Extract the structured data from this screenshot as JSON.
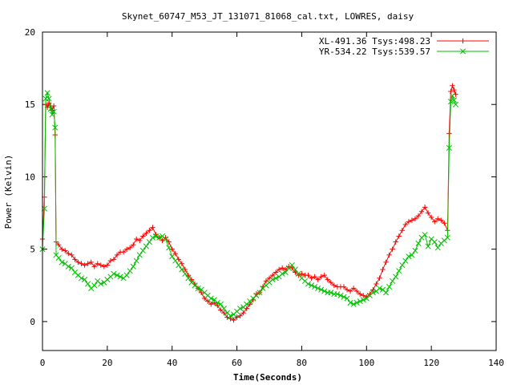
{
  "chart_data": {
    "type": "line",
    "title": "Skynet_60747_M53_JT_131071_81068_cal.txt, LOWRES, daisy",
    "xlabel": "Time(Seconds)",
    "ylabel": "Power (Kelvin)",
    "xlim": [
      0,
      140
    ],
    "ylim": [
      -2,
      20
    ],
    "xticks": [
      "0",
      "20",
      "40",
      "60",
      "80",
      "100",
      "120",
      "140"
    ],
    "yticks": [
      "0",
      "5",
      "10",
      "15",
      "20"
    ],
    "grid": false,
    "legend_position": "top-right",
    "series": [
      {
        "name": "XL-491.36 Tsys:498.23",
        "color": "#ff0000",
        "marker": "plus",
        "points": [
          [
            0.0,
            5.7
          ],
          [
            0.6,
            8.6
          ],
          [
            1.0,
            15.0
          ],
          [
            1.5,
            14.8
          ],
          [
            2.0,
            15.1
          ],
          [
            2.5,
            14.9
          ],
          [
            3.0,
            14.6
          ],
          [
            3.5,
            14.9
          ],
          [
            3.9,
            12.9
          ],
          [
            4.2,
            5.5
          ],
          [
            5,
            5.3
          ],
          [
            6,
            5.0
          ],
          [
            7,
            4.9
          ],
          [
            8,
            4.7
          ],
          [
            9,
            4.6
          ],
          [
            10,
            4.3
          ],
          [
            11,
            4.1
          ],
          [
            12,
            4.0
          ],
          [
            13,
            3.9
          ],
          [
            14,
            4.0
          ],
          [
            15,
            4.1
          ],
          [
            16,
            3.8
          ],
          [
            17,
            4.0
          ],
          [
            18,
            3.9
          ],
          [
            19,
            3.8
          ],
          [
            20,
            3.9
          ],
          [
            21,
            4.2
          ],
          [
            22,
            4.3
          ],
          [
            23,
            4.6
          ],
          [
            24,
            4.8
          ],
          [
            25,
            4.8
          ],
          [
            26,
            5.0
          ],
          [
            27,
            5.1
          ],
          [
            28,
            5.3
          ],
          [
            29,
            5.7
          ],
          [
            30,
            5.6
          ],
          [
            31,
            5.9
          ],
          [
            32,
            6.1
          ],
          [
            33,
            6.3
          ],
          [
            34,
            6.5
          ],
          [
            35,
            6.0
          ],
          [
            36,
            5.8
          ],
          [
            37,
            5.6
          ],
          [
            38,
            5.8
          ],
          [
            39,
            5.5
          ],
          [
            40,
            5.0
          ],
          [
            41,
            4.7
          ],
          [
            42,
            4.3
          ],
          [
            43,
            4.0
          ],
          [
            44,
            3.6
          ],
          [
            45,
            3.2
          ],
          [
            46,
            2.9
          ],
          [
            47,
            2.6
          ],
          [
            48,
            2.3
          ],
          [
            49,
            2.0
          ],
          [
            50,
            1.6
          ],
          [
            51,
            1.4
          ],
          [
            52,
            1.2
          ],
          [
            53,
            1.3
          ],
          [
            54,
            1.1
          ],
          [
            55,
            0.8
          ],
          [
            56,
            0.6
          ],
          [
            57,
            0.3
          ],
          [
            58,
            0.2
          ],
          [
            59,
            0.1
          ],
          [
            60,
            0.3
          ],
          [
            61,
            0.4
          ],
          [
            62,
            0.6
          ],
          [
            63,
            0.9
          ],
          [
            64,
            1.2
          ],
          [
            65,
            1.5
          ],
          [
            66,
            1.9
          ],
          [
            67,
            2.0
          ],
          [
            68,
            2.4
          ],
          [
            69,
            2.8
          ],
          [
            70,
            3.0
          ],
          [
            71,
            3.2
          ],
          [
            72,
            3.4
          ],
          [
            73,
            3.6
          ],
          [
            74,
            3.7
          ],
          [
            75,
            3.6
          ],
          [
            76,
            3.8
          ],
          [
            77,
            3.7
          ],
          [
            78,
            3.4
          ],
          [
            79,
            3.2
          ],
          [
            80,
            3.3
          ],
          [
            81,
            3.2
          ],
          [
            82,
            3.2
          ],
          [
            83,
            3.0
          ],
          [
            84,
            3.1
          ],
          [
            85,
            2.9
          ],
          [
            86,
            3.1
          ],
          [
            87,
            3.2
          ],
          [
            88,
            2.9
          ],
          [
            89,
            2.7
          ],
          [
            90,
            2.5
          ],
          [
            91,
            2.4
          ],
          [
            92,
            2.4
          ],
          [
            93,
            2.4
          ],
          [
            94,
            2.2
          ],
          [
            95,
            2.1
          ],
          [
            96,
            2.3
          ],
          [
            97,
            2.1
          ],
          [
            98,
            1.9
          ],
          [
            99,
            1.8
          ],
          [
            100,
            1.7
          ],
          [
            101,
            1.9
          ],
          [
            102,
            2.2
          ],
          [
            103,
            2.6
          ],
          [
            104,
            3.0
          ],
          [
            105,
            3.6
          ],
          [
            106,
            4.1
          ],
          [
            107,
            4.6
          ],
          [
            108,
            5.0
          ],
          [
            109,
            5.5
          ],
          [
            110,
            5.9
          ],
          [
            111,
            6.3
          ],
          [
            112,
            6.7
          ],
          [
            113,
            6.9
          ],
          [
            114,
            7.0
          ],
          [
            115,
            7.1
          ],
          [
            116,
            7.3
          ],
          [
            117,
            7.6
          ],
          [
            118,
            7.9
          ],
          [
            119,
            7.5
          ],
          [
            120,
            7.2
          ],
          [
            121,
            6.9
          ],
          [
            122,
            7.1
          ],
          [
            123,
            7.0
          ],
          [
            124,
            6.8
          ],
          [
            125,
            6.3
          ],
          [
            125.5,
            13.0
          ],
          [
            126,
            15.9
          ],
          [
            126.5,
            16.3
          ],
          [
            127,
            16.0
          ],
          [
            127.5,
            15.7
          ]
        ]
      },
      {
        "name": "YR-534.22 Tsys:539.57",
        "color": "#00c000",
        "marker": "cross",
        "points": [
          [
            0.0,
            5.0
          ],
          [
            0.6,
            7.8
          ],
          [
            1.0,
            15.4
          ],
          [
            1.5,
            15.8
          ],
          [
            2.0,
            15.4
          ],
          [
            2.5,
            14.7
          ],
          [
            3.0,
            14.3
          ],
          [
            3.5,
            14.5
          ],
          [
            3.9,
            13.4
          ],
          [
            4.2,
            4.6
          ],
          [
            5,
            4.4
          ],
          [
            6,
            4.1
          ],
          [
            7,
            4.0
          ],
          [
            8,
            3.8
          ],
          [
            9,
            3.7
          ],
          [
            10,
            3.4
          ],
          [
            11,
            3.2
          ],
          [
            12,
            3.0
          ],
          [
            13,
            2.9
          ],
          [
            14,
            2.6
          ],
          [
            15,
            2.3
          ],
          [
            16,
            2.5
          ],
          [
            17,
            2.8
          ],
          [
            18,
            2.6
          ],
          [
            19,
            2.7
          ],
          [
            20,
            2.9
          ],
          [
            21,
            3.1
          ],
          [
            22,
            3.3
          ],
          [
            23,
            3.2
          ],
          [
            24,
            3.1
          ],
          [
            25,
            3.0
          ],
          [
            26,
            3.2
          ],
          [
            27,
            3.5
          ],
          [
            28,
            3.8
          ],
          [
            29,
            4.2
          ],
          [
            30,
            4.6
          ],
          [
            31,
            4.9
          ],
          [
            32,
            5.2
          ],
          [
            33,
            5.5
          ],
          [
            34,
            5.8
          ],
          [
            35,
            5.9
          ],
          [
            36,
            5.8
          ],
          [
            37,
            5.9
          ],
          [
            38,
            5.7
          ],
          [
            39,
            5.1
          ],
          [
            40,
            4.5
          ],
          [
            41,
            4.2
          ],
          [
            42,
            3.9
          ],
          [
            43,
            3.6
          ],
          [
            44,
            3.3
          ],
          [
            45,
            3.0
          ],
          [
            46,
            2.7
          ],
          [
            47,
            2.5
          ],
          [
            48,
            2.3
          ],
          [
            49,
            2.2
          ],
          [
            50,
            2.0
          ],
          [
            51,
            1.8
          ],
          [
            52,
            1.6
          ],
          [
            53,
            1.5
          ],
          [
            54,
            1.3
          ],
          [
            55,
            1.2
          ],
          [
            56,
            0.9
          ],
          [
            57,
            0.6
          ],
          [
            58,
            0.4
          ],
          [
            59,
            0.5
          ],
          [
            60,
            0.7
          ],
          [
            61,
            0.9
          ],
          [
            62,
            1.0
          ],
          [
            63,
            1.2
          ],
          [
            64,
            1.4
          ],
          [
            65,
            1.6
          ],
          [
            66,
            1.8
          ],
          [
            67,
            2.0
          ],
          [
            68,
            2.3
          ],
          [
            69,
            2.5
          ],
          [
            70,
            2.7
          ],
          [
            71,
            2.9
          ],
          [
            72,
            3.0
          ],
          [
            73,
            3.1
          ],
          [
            74,
            3.3
          ],
          [
            75,
            3.4
          ],
          [
            76,
            3.7
          ],
          [
            77,
            3.9
          ],
          [
            78,
            3.6
          ],
          [
            79,
            3.3
          ],
          [
            80,
            3.0
          ],
          [
            81,
            2.8
          ],
          [
            82,
            2.6
          ],
          [
            83,
            2.5
          ],
          [
            84,
            2.4
          ],
          [
            85,
            2.3
          ],
          [
            86,
            2.2
          ],
          [
            87,
            2.1
          ],
          [
            88,
            2.0
          ],
          [
            89,
            2.0
          ],
          [
            90,
            1.9
          ],
          [
            91,
            1.9
          ],
          [
            92,
            1.8
          ],
          [
            93,
            1.7
          ],
          [
            94,
            1.6
          ],
          [
            95,
            1.3
          ],
          [
            96,
            1.2
          ],
          [
            97,
            1.3
          ],
          [
            98,
            1.4
          ],
          [
            99,
            1.5
          ],
          [
            100,
            1.6
          ],
          [
            101,
            1.8
          ],
          [
            102,
            2.0
          ],
          [
            103,
            2.1
          ],
          [
            104,
            2.3
          ],
          [
            105,
            2.2
          ],
          [
            106,
            2.0
          ],
          [
            107,
            2.4
          ],
          [
            108,
            2.8
          ],
          [
            109,
            3.1
          ],
          [
            110,
            3.5
          ],
          [
            111,
            3.9
          ],
          [
            112,
            4.2
          ],
          [
            113,
            4.5
          ],
          [
            114,
            4.6
          ],
          [
            115,
            4.9
          ],
          [
            116,
            5.4
          ],
          [
            117,
            5.8
          ],
          [
            118,
            6.0
          ],
          [
            119,
            5.2
          ],
          [
            120,
            5.7
          ],
          [
            121,
            5.5
          ],
          [
            122,
            5.1
          ],
          [
            123,
            5.4
          ],
          [
            124,
            5.6
          ],
          [
            125,
            5.8
          ],
          [
            125.5,
            12.0
          ],
          [
            126,
            15.2
          ],
          [
            126.5,
            15.6
          ],
          [
            127,
            15.3
          ],
          [
            127.5,
            15.0
          ]
        ]
      }
    ]
  }
}
